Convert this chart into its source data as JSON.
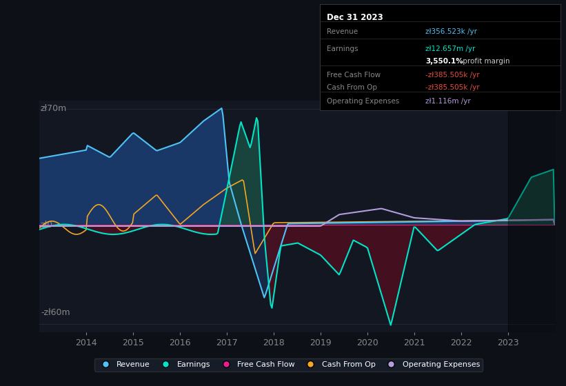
{
  "bg_color": "#0d1117",
  "plot_bg_color": "#131722",
  "grid_color": "#2a2e39",
  "ylim": [
    -65000000,
    75000000
  ],
  "xtick_positions": [
    2014,
    2015,
    2016,
    2017,
    2018,
    2019,
    2020,
    2021,
    2022,
    2023
  ],
  "legend_items": [
    {
      "label": "Revenue",
      "color": "#4fc3f7"
    },
    {
      "label": "Earnings",
      "color": "#00e5c8"
    },
    {
      "label": "Free Cash Flow",
      "color": "#e91e8c"
    },
    {
      "label": "Cash From Op",
      "color": "#f5a623"
    },
    {
      "label": "Operating Expenses",
      "color": "#b39ddb"
    }
  ],
  "info_box_title": "Dec 31 2023",
  "info_rows": [
    {
      "label": "Revenue",
      "value": "zl356.523k /yr",
      "value_color": "#4fc3f7"
    },
    {
      "label": "Earnings",
      "value": "zl12.657m /yr",
      "value_color": "#00e5c8"
    },
    {
      "label": "",
      "value": "3,550.1%",
      "value_color": "#ffffff",
      "suffix": " profit margin",
      "suffix_color": "#cccccc"
    },
    {
      "label": "Free Cash Flow",
      "value": "-zl385.505k /yr",
      "value_color": "#e74c3c"
    },
    {
      "label": "Cash From Op",
      "value": "-zl385.505k /yr",
      "value_color": "#e74c3c"
    },
    {
      "label": "Operating Expenses",
      "value": "zl1.116m /yr",
      "value_color": "#b39ddb"
    }
  ],
  "revenue_line_color": "#4fc3f7",
  "revenue_fill_color": "#1a3a6b",
  "earnings_line_color": "#00e5c8",
  "earnings_fill_pos_color": "#1a4a42",
  "earnings_fill_neg_color": "#4a1020",
  "cashfromop_color": "#f5a623",
  "freecashflow_color": "#e91e8c",
  "opex_color": "#b39ddb",
  "zero_line_color": "#888888",
  "grid_line_color": "#2a2e39",
  "label_color": "#888888",
  "shaded_right_start": 2023.0
}
